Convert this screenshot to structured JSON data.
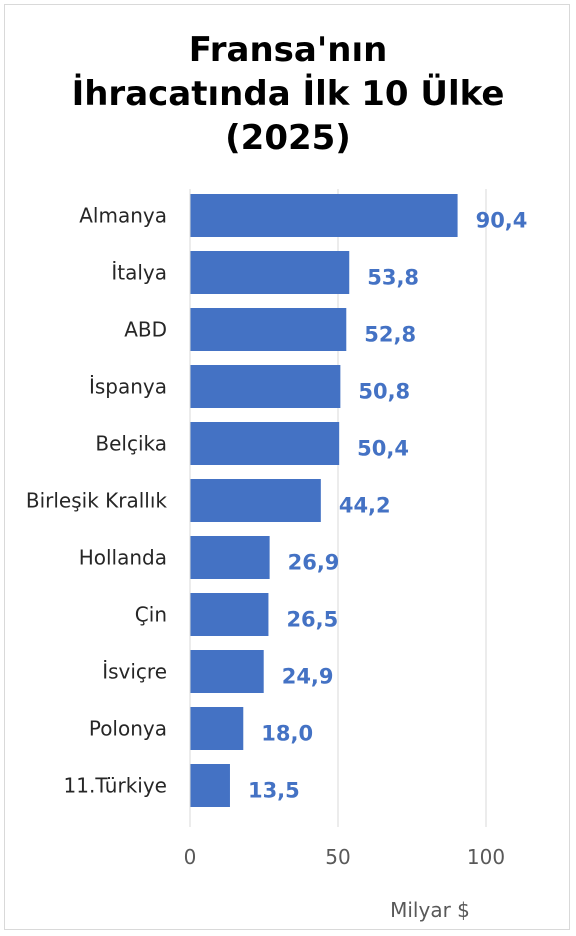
{
  "chart_data": {
    "type": "bar",
    "orientation": "horizontal",
    "title": [
      "Fransa'nın",
      "İhracatında İlk 10 Ülke",
      "(2025)"
    ],
    "categories": [
      "Almanya",
      "İtalya",
      "ABD",
      "İspanya",
      "Belçika",
      "Birleşik Krallık",
      "Hollanda",
      "Çin",
      "İsviçre",
      "Polonya",
      "11.Türkiye"
    ],
    "values": [
      90.4,
      53.8,
      52.8,
      50.8,
      50.4,
      44.2,
      26.9,
      26.5,
      24.9,
      18.0,
      13.5
    ],
    "value_labels": [
      "90,4",
      "53,8",
      "52,8",
      "50,8",
      "50,4",
      "44,2",
      "26,9",
      "26,5",
      "24,9",
      "18,0",
      "13,5"
    ],
    "xlim": [
      0,
      100
    ],
    "xticks": [
      "0",
      "50",
      "100"
    ],
    "xlabel": "Milyar $",
    "ylabel": "",
    "grid": "vertical",
    "legend": "none",
    "colors": {
      "bar": "#4472C4",
      "value_label": "#4472C4",
      "grid": "#d9d9d9"
    }
  }
}
